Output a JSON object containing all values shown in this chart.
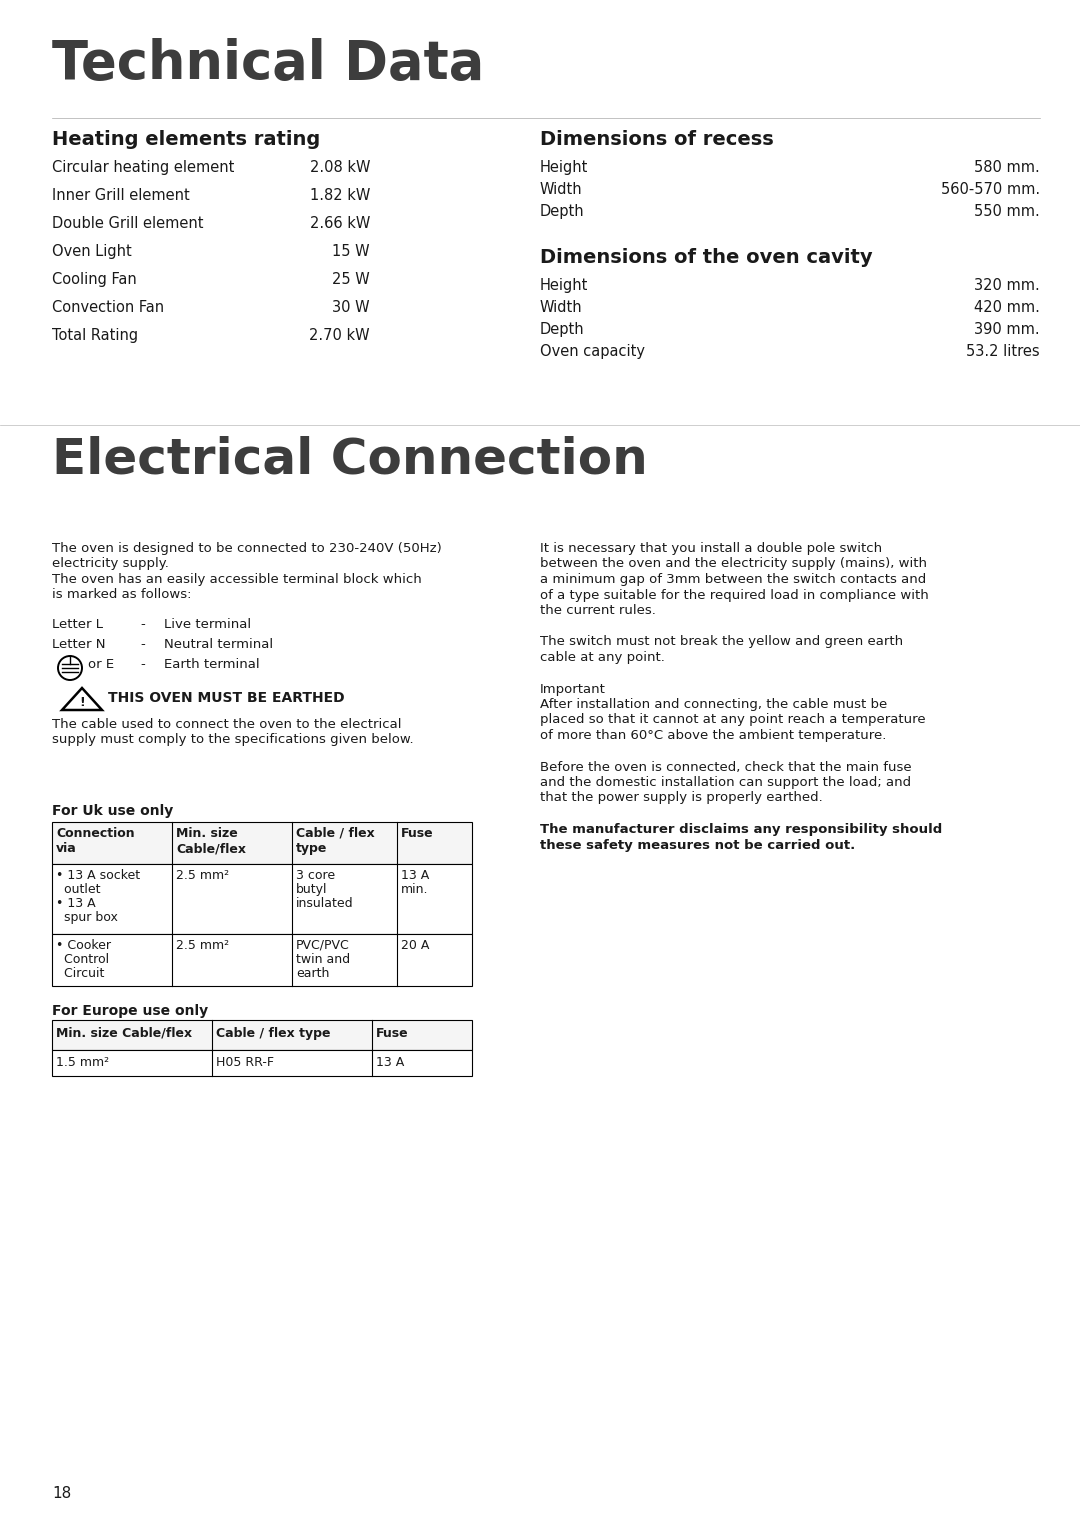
{
  "bg_color": "#ffffff",
  "text_color": "#1a1a1a",
  "page_number": "18",
  "section1_title": "Technical Data",
  "section2_title": "Electrical Connection",
  "heating_title": "Heating elements rating",
  "heating_items": [
    [
      "Circular heating element",
      "2.08 kW"
    ],
    [
      "Inner Grill element",
      "1.82 kW"
    ],
    [
      "Double Grill element",
      "2.66 kW"
    ],
    [
      "Oven Light",
      "15 W"
    ],
    [
      "Cooling Fan",
      "25 W"
    ],
    [
      "Convection Fan",
      "30 W"
    ],
    [
      "Total Rating",
      "2.70 kW"
    ]
  ],
  "recess_title": "Dimensions of recess",
  "recess_items": [
    [
      "Height",
      "580 mm."
    ],
    [
      "Width",
      "560-570 mm."
    ],
    [
      "Depth",
      "550 mm."
    ]
  ],
  "cavity_title": "Dimensions of the oven cavity",
  "cavity_items": [
    [
      "Height",
      "320 mm."
    ],
    [
      "Width",
      "420 mm."
    ],
    [
      "Depth",
      "390 mm."
    ],
    [
      "Oven capacity",
      "53.2 litres"
    ]
  ],
  "elec_para1_lines": [
    "The oven is designed to be connected to 230-240V (50Hz)",
    "electricity supply.",
    "The oven has an easily accessible terminal block which",
    "is marked as follows:"
  ],
  "terminals": [
    [
      "Letter L",
      "-",
      "Live terminal"
    ],
    [
      "Letter N",
      "-",
      "Neutral terminal"
    ]
  ],
  "earth_terminal": [
    "or E",
    "-",
    "Earth terminal"
  ],
  "warning_text": "THIS OVEN MUST BE EARTHED",
  "warning_para_lines": [
    "The cable used to connect the oven to the electrical",
    "supply must comply to the specifications given below."
  ],
  "right_para1_lines": [
    "It is necessary that you install a double pole switch",
    "between the oven and the electricity supply (mains), with",
    "a minimum gap of 3mm between the switch contacts and",
    "of a type suitable for the required load in compliance with",
    "the current rules."
  ],
  "right_para2_lines": [
    "The switch must not break the yellow and green earth",
    "cable at any point."
  ],
  "right_para3_label": "Important",
  "right_para3_lines": [
    "After installation and connecting, the cable must be",
    "placed so that it cannot at any point reach a temperature",
    "of more than 60°C above the ambient temperature."
  ],
  "right_para4_lines": [
    "Before the oven is connected, check that the main fuse",
    "and the domestic installation can support the load; and",
    "that the power supply is properly earthed."
  ],
  "right_para5_lines": [
    "The manufacturer disclaims any responsibility should",
    "these safety measures not be carried out."
  ],
  "uk_label": "For Uk use only",
  "uk_table_headers": [
    "Connection\nvia",
    "Min. size\nCable/flex",
    "Cable / flex\ntype",
    "Fuse"
  ],
  "uk_table_rows": [
    [
      "• 13 A socket\n  outlet\n• 13 A\n  spur box",
      "2.5 mm²",
      "3 core\nbutyl\ninsulated",
      "13 A\nmin."
    ],
    [
      "• Cooker\n  Control\n  Circuit",
      "2.5 mm²",
      "PVC/PVC\ntwin and\nearth",
      "20 A"
    ]
  ],
  "europe_label": "For Europe use only",
  "europe_table_headers": [
    "Min. size Cable/flex",
    "Cable / flex type",
    "Fuse"
  ],
  "europe_table_rows": [
    [
      "1.5 mm²",
      "H05 RR-F",
      "13 A"
    ]
  ]
}
